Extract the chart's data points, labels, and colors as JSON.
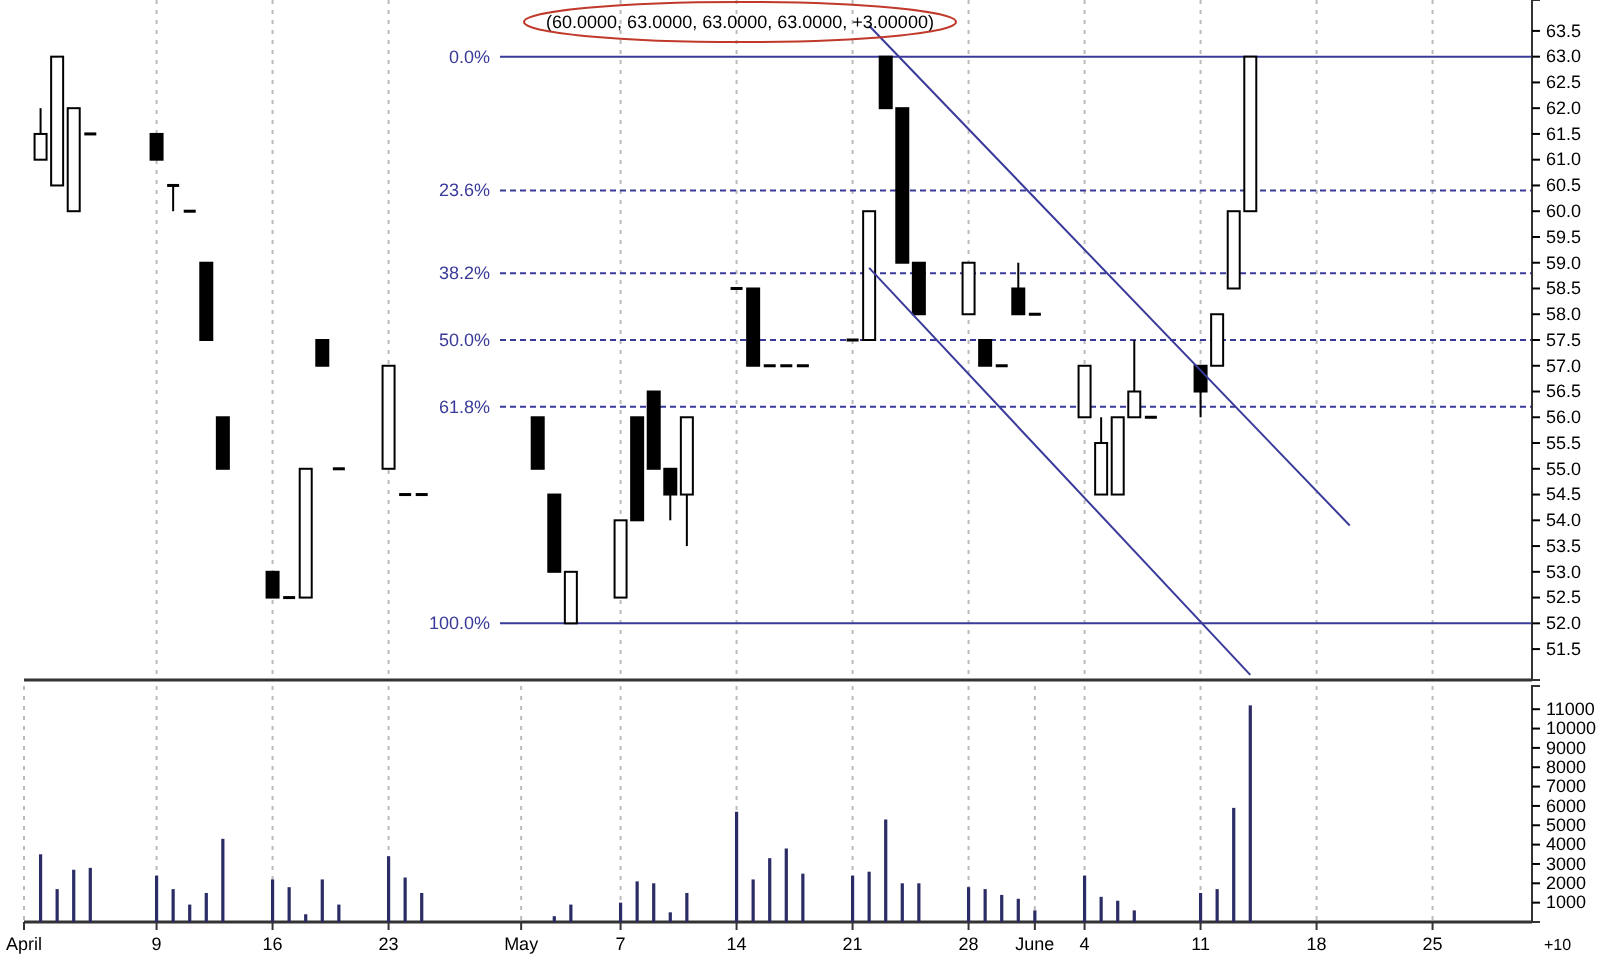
{
  "chart_data": [
    {
      "type": "candlestick",
      "title": "(60.0000, 63.0000, 63.0000, 63.0000, +3.00000)",
      "x": [
        "--04-02",
        "--04-03",
        "--04-04",
        "--04-05",
        "--04-09",
        "--04-10",
        "--04-11",
        "--04-12",
        "--04-13",
        "--04-16",
        "--04-17",
        "--04-18",
        "--04-19",
        "--04-20",
        "--04-23",
        "--04-24",
        "--04-25",
        "--05-02",
        "--05-03",
        "--05-04",
        "--05-07",
        "--05-08",
        "--05-09",
        "--05-10",
        "--05-11",
        "--05-14",
        "--05-15",
        "--05-16",
        "--05-17",
        "--05-18",
        "--05-21",
        "--05-22",
        "--05-23",
        "--05-24",
        "--05-25",
        "--05-28",
        "--05-29",
        "--05-30",
        "--05-31",
        "--06-01",
        "--06-04",
        "--06-05",
        "--06-06",
        "--06-07",
        "--06-08",
        "--06-11",
        "--06-12",
        "--06-13",
        "--06-14"
      ],
      "ohlc": [
        [
          61,
          62,
          61,
          61.5
        ],
        [
          60.5,
          63,
          60.5,
          63
        ],
        [
          60,
          62,
          60,
          62
        ],
        [
          61.5,
          61.5,
          61.5,
          61.5
        ],
        [
          61.5,
          61.5,
          61,
          61
        ],
        [
          60.5,
          60.5,
          60,
          60.5
        ],
        [
          60,
          60,
          60,
          60
        ],
        [
          59,
          59,
          57.5,
          57.5
        ],
        [
          56,
          56,
          55,
          55
        ],
        [
          53,
          53,
          52.5,
          52.5
        ],
        [
          52.5,
          52.5,
          52.5,
          52.5
        ],
        [
          52.5,
          55,
          52.5,
          55
        ],
        [
          57.5,
          57.5,
          57,
          57
        ],
        [
          55,
          55,
          55,
          55
        ],
        [
          55,
          57,
          55,
          57
        ],
        [
          54.5,
          54.5,
          54.5,
          54.5
        ],
        [
          54.5,
          54.5,
          54.5,
          54.5
        ],
        [
          56,
          56,
          55,
          55
        ],
        [
          54.5,
          54.5,
          53,
          53
        ],
        [
          52,
          53,
          52,
          53
        ],
        [
          52.5,
          54,
          52.5,
          54
        ],
        [
          56,
          56,
          54,
          54
        ],
        [
          56.5,
          56.5,
          55,
          55
        ],
        [
          55,
          55,
          54,
          54.5
        ],
        [
          54.5,
          56,
          53.5,
          56
        ],
        [
          58.5,
          58.5,
          58.5,
          58.5
        ],
        [
          58.5,
          58.5,
          57,
          57
        ],
        [
          57,
          57,
          57,
          57
        ],
        [
          57,
          57,
          57,
          57
        ],
        [
          57,
          57,
          57,
          57
        ],
        [
          57.5,
          57.5,
          57.5,
          57.5
        ],
        [
          57.5,
          60,
          57.5,
          60
        ],
        [
          63,
          63,
          62,
          62
        ],
        [
          62,
          62,
          59,
          59
        ],
        [
          59,
          59,
          58,
          58
        ],
        [
          58,
          59,
          58,
          59
        ],
        [
          57.5,
          57.5,
          57,
          57
        ],
        [
          57,
          57,
          57,
          57
        ],
        [
          58.5,
          59,
          58,
          58
        ],
        [
          58,
          58,
          58,
          58
        ],
        [
          56,
          57,
          56,
          57
        ],
        [
          54.5,
          56,
          54.5,
          55.5
        ],
        [
          54.5,
          56,
          54.5,
          56
        ],
        [
          56,
          57.5,
          56,
          56.5
        ],
        [
          56,
          56,
          56,
          56
        ],
        [
          57,
          57,
          56,
          56.5
        ],
        [
          57,
          58,
          57,
          58
        ],
        [
          58.5,
          60,
          58.5,
          60
        ],
        [
          60,
          63,
          60,
          63
        ]
      ],
      "xlim": [
        "--04-01",
        "--07-01"
      ],
      "ylim": [
        50.9,
        64.1
      ],
      "yticks": [
        51.5,
        {
          "value": 52,
          "label": "52.0"
        },
        52.5,
        {
          "value": 53,
          "label": "53.0"
        },
        53.5,
        {
          "value": 54,
          "label": "54.0"
        },
        54.5,
        {
          "value": 55,
          "label": "55.0"
        },
        55.5,
        {
          "value": 56,
          "label": "56.0"
        },
        56.5,
        {
          "value": 57,
          "label": "57.0"
        },
        57.5,
        {
          "value": 58,
          "label": "58.0"
        },
        58.5,
        {
          "value": 59,
          "label": "59.0"
        },
        59.5,
        {
          "value": 60,
          "label": "60.0"
        },
        60.5,
        {
          "value": 61,
          "label": "61.0"
        },
        61.5,
        {
          "value": 62,
          "label": "62.0"
        },
        62.5,
        {
          "value": 63,
          "label": "63.0"
        },
        63.5
      ],
      "y2lim": [
        110,
        -10
      ],
      "xticks": [
        {
          "value": "--04-09",
          "label": null
        },
        {
          "value": "--04-16",
          "label": null
        },
        {
          "value": "--04-23",
          "label": null
        },
        {
          "value": "--05-07",
          "label": null
        },
        {
          "value": "--05-14",
          "label": null
        },
        {
          "value": "--05-21",
          "label": null
        },
        {
          "value": "--05-28",
          "label": null
        },
        {
          "value": "--06-04",
          "label": null
        },
        {
          "value": "--06-11",
          "label": null
        },
        {
          "value": "--06-18",
          "label": null
        },
        {
          "value": "--06-25",
          "label": null
        }
      ],
      "tick_labels": "y",
      "grid": "x",
      "ref_lines": [
        {
          "axis": "y2",
          "value": 0,
          "label": "0.0%",
          "color": "#3a3a9a",
          "line_style": "solid"
        },
        {
          "axis": "y2",
          "value": 23.6,
          "label": "23.6%",
          "color": "#3a3a9a",
          "line_style": "dashed"
        },
        {
          "axis": "y2",
          "value": 38.2,
          "label": "38.2%",
          "color": "#3a3a9a",
          "line_style": "dashed"
        },
        {
          "axis": "y2",
          "value": 50,
          "label": "50.0%",
          "color": "#3a3a9a",
          "line_style": "dashed"
        },
        {
          "axis": "y2",
          "value": 61.8,
          "label": "61.8%",
          "color": "#3a3a9a",
          "line_style": "dashed"
        },
        {
          "axis": "y2",
          "value": 100,
          "label": "100.0%",
          "color": "#3a3a9a",
          "line_style": "solid"
        }
      ],
      "series": [
        {
          "type": "line",
          "color": "#3a3a9a",
          "x": [
            "--05-22",
            "--06-20"
          ],
          "values": [
            63.6,
            53.9
          ]
        },
        {
          "type": "line",
          "color": "#3a3a9a",
          "x": [
            "--05-22",
            "--06-14"
          ],
          "values": [
            58.9,
            51.0
          ]
        }
      ]
    },
    {
      "type": "bar",
      "x": [
        "--04-02",
        "--04-03",
        "--04-04",
        "--04-05",
        "--04-09",
        "--04-10",
        "--04-11",
        "--04-12",
        "--04-13",
        "--04-16",
        "--04-17",
        "--04-18",
        "--04-19",
        "--04-20",
        "--04-23",
        "--04-24",
        "--04-25",
        "--05-03",
        "--05-04",
        "--05-07",
        "--05-08",
        "--05-09",
        "--05-10",
        "--05-11",
        "--05-14",
        "--05-15",
        "--05-16",
        "--05-17",
        "--05-18",
        "--05-21",
        "--05-22",
        "--05-23",
        "--05-24",
        "--05-25",
        "--05-28",
        "--05-29",
        "--05-30",
        "--05-31",
        "--06-01",
        "--06-04",
        "--06-05",
        "--06-06",
        "--06-07",
        "--06-11",
        "--06-12",
        "--06-13",
        "--06-14"
      ],
      "values": [
        3500,
        1700,
        2700,
        2800,
        2400,
        1700,
        900,
        1500,
        4300,
        2200,
        1800,
        400,
        2200,
        900,
        3400,
        2300,
        1500,
        300,
        900,
        1000,
        2100,
        2000,
        500,
        1500,
        5700,
        2200,
        3300,
        3800,
        2500,
        2400,
        2600,
        5300,
        2000,
        2000,
        1800,
        1700,
        1400,
        1200,
        600,
        2400,
        1300,
        1100,
        600,
        1500,
        1700,
        5900,
        11200
      ],
      "color": "#2b2b66",
      "xlim": [
        "--04-01",
        "--07-01"
      ],
      "ylim": [
        0,
        12200
      ],
      "yticks": [
        1000,
        2000,
        3000,
        4000,
        5000,
        6000,
        7000,
        8000,
        9000,
        10000,
        11000
      ],
      "xticks": [
        {
          "value": "--04-01",
          "label": "April"
        },
        {
          "value": "--04-09",
          "label": "9"
        },
        {
          "value": "--04-16",
          "label": "16"
        },
        {
          "value": "--04-23",
          "label": "23"
        },
        {
          "value": "--05-01",
          "label": "May"
        },
        {
          "value": "--05-07",
          "label": "7"
        },
        {
          "value": "--05-14",
          "label": "14"
        },
        {
          "value": "--05-21",
          "label": "21"
        },
        {
          "value": "--05-28",
          "label": "28"
        },
        {
          "value": "--06-01",
          "label": "June"
        },
        {
          "value": "--06-04",
          "label": "4"
        },
        {
          "value": "--06-11",
          "label": "11"
        },
        {
          "value": "--06-18",
          "label": "18"
        },
        {
          "value": "--06-25",
          "label": "25"
        }
      ],
      "grid": "x",
      "annotations": [
        "+10"
      ]
    }
  ]
}
